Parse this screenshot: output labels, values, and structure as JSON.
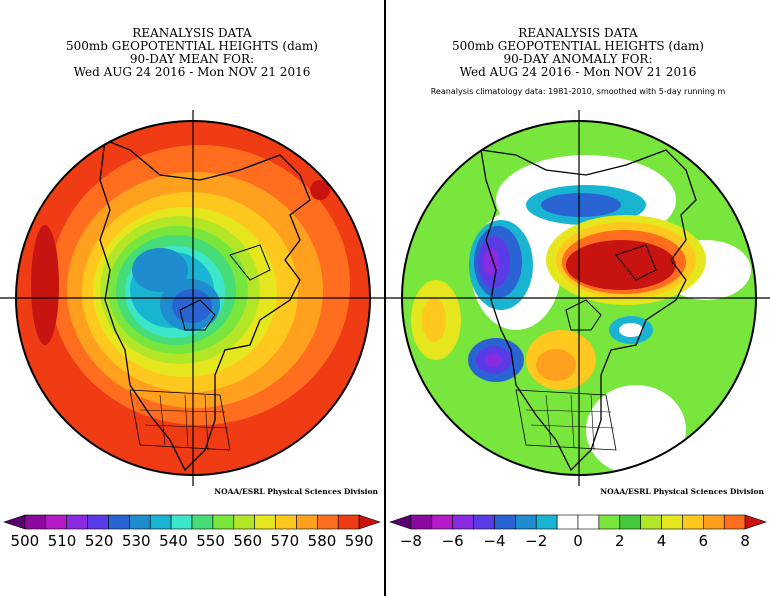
{
  "panels": [
    {
      "title": [
        "REANALYSIS DATA",
        "500mb GEOPOTENTIAL HEIGHTS (dam)",
        "90-DAY MEAN FOR:",
        "Wed AUG 24 2016 - Mon NOV 21 2016"
      ],
      "subtitle": "",
      "credit": "NOAA/ESRL Physical Sciences Division",
      "colorbar": {
        "colors": [
          "#5a006e",
          "#8a0aa0",
          "#b51cc8",
          "#8a2be2",
          "#5a3ce6",
          "#2a64d2",
          "#1e8ccd",
          "#18b4d2",
          "#3ce6c8",
          "#46dc78",
          "#78e63c",
          "#b4e628",
          "#e6e61e",
          "#ffc81e",
          "#ffa01e",
          "#ff6e1e",
          "#f03c14",
          "#c81410"
        ],
        "labels": [
          "500",
          "510",
          "520",
          "530",
          "540",
          "550",
          "560",
          "570",
          "580",
          "590"
        ]
      }
    },
    {
      "title": [
        "REANALYSIS DATA",
        "500mb GEOPOTENTIAL HEIGHTS (dam)",
        "90-DAY ANOMALY FOR:",
        "Wed AUG 24 2016 - Mon NOV 21 2016"
      ],
      "subtitle": "Reanalysis climatology data: 1981-2010, smoothed with 5-day running m",
      "credit": "NOAA/ESRL Physical Sciences Division",
      "colorbar": {
        "colors": [
          "#5a006e",
          "#8a0aa0",
          "#b51cc8",
          "#8a2be2",
          "#5a3ce6",
          "#2a64d2",
          "#1e8ccd",
          "#18b4d2",
          "#ffffff",
          "#ffffff",
          "#78e63c",
          "#46c83c",
          "#b4e628",
          "#e6e61e",
          "#ffc81e",
          "#ffa01e",
          "#ff6e1e",
          "#c81410"
        ],
        "labels": [
          "−8",
          "−6",
          "−4",
          "−2",
          "0",
          "2",
          "4",
          "6",
          "8"
        ]
      }
    }
  ]
}
